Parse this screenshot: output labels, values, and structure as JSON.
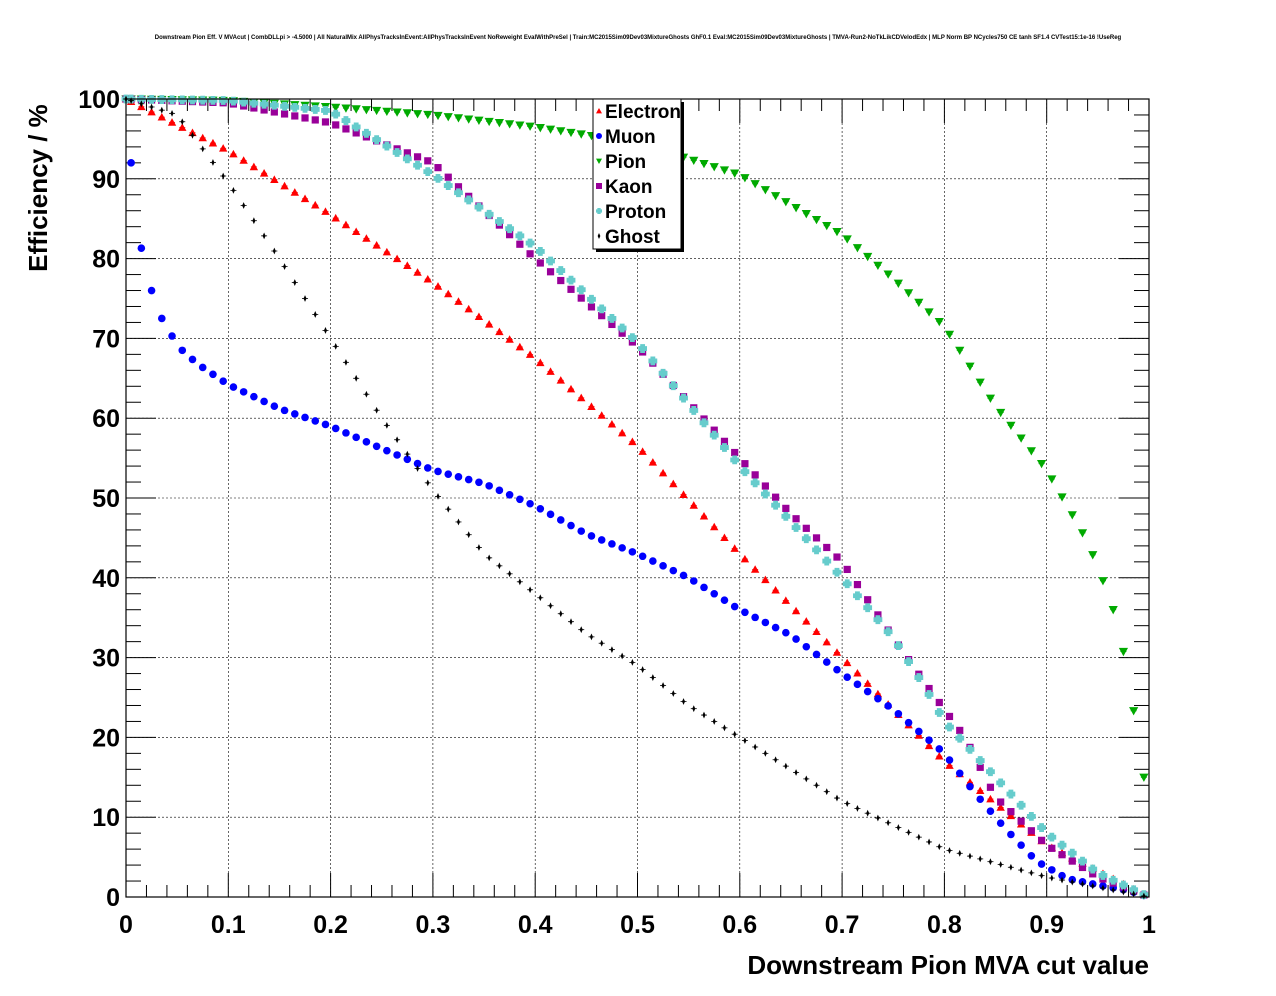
{
  "chart_data": {
    "type": "scatter",
    "title": "Downstream Pion Eff. V MVAcut | CombDLLpi > -4.5000 | All NaturalMix AllPhysTracksInEvent:AllPhysTracksInEvent NoReweight EvalWithPreSel | Train:MC2015Sim09Dev03MixtureGhosts GhF0.1 Eval:MC2015Sim09Dev03MixtureGhosts | TMVA-Run2-NoTkLikCDVelodEdx | MLP Norm BP NCycles750 CE tanh SF1.4 CVTest15:1e-16 !UseReg",
    "xlabel": "Downstream Pion MVA cut value",
    "ylabel": "Efficiency / %",
    "xlim": [
      0,
      1
    ],
    "ylim": [
      0,
      100
    ],
    "x_ticks": [
      "0",
      "0.1",
      "0.2",
      "0.3",
      "0.4",
      "0.5",
      "0.6",
      "0.7",
      "0.8",
      "0.9",
      "1"
    ],
    "y_ticks": [
      "0",
      "10",
      "20",
      "30",
      "40",
      "50",
      "60",
      "70",
      "80",
      "90",
      "100"
    ],
    "grid": true,
    "legend_position": "top-center",
    "series": [
      {
        "name": "Electron",
        "color": "#ff0000",
        "marker": "triangle-up",
        "x": [
          0,
          0.1,
          0.2,
          0.3,
          0.4,
          0.5,
          0.6,
          0.7,
          0.8,
          0.9,
          1.0
        ],
        "y": [
          100,
          93.5,
          85.5,
          77,
          67.5,
          56.5,
          43,
          30,
          17,
          6.5,
          0
        ]
      },
      {
        "name": "Muon",
        "color": "#0000ff",
        "marker": "circle",
        "x": [
          0.005,
          0.015,
          0.025,
          0.035,
          0.045,
          0.055,
          0.07,
          0.1,
          0.15,
          0.2,
          0.25,
          0.3,
          0.35,
          0.4,
          0.45,
          0.5,
          0.55,
          0.6,
          0.65,
          0.7,
          0.75,
          0.8,
          0.83,
          0.86,
          0.89,
          0.92,
          0.95,
          0.98,
          1.0
        ],
        "y": [
          92,
          81.3,
          76,
          72.5,
          70.3,
          68.5,
          66.8,
          64.2,
          61.2,
          59,
          56.2,
          53.5,
          51.8,
          49,
          45.5,
          43,
          40,
          36,
          32.8,
          28,
          23.5,
          18,
          13,
          8.5,
          4.5,
          2.3,
          1.5,
          0.8,
          0
        ]
      },
      {
        "name": "Pion",
        "color": "#00aa00",
        "marker": "triangle-down",
        "x": [
          0,
          0.1,
          0.2,
          0.3,
          0.4,
          0.5,
          0.6,
          0.7,
          0.75,
          0.8,
          0.85,
          0.9,
          0.92,
          0.94,
          0.96,
          0.97,
          0.98,
          0.995
        ],
        "y": [
          100,
          99.8,
          99,
          98,
          96.5,
          94.5,
          90.5,
          83,
          77.5,
          71.5,
          61.5,
          53.5,
          49,
          44.5,
          38,
          34,
          27.5,
          15
        ]
      },
      {
        "name": "Kaon",
        "color": "#990099",
        "marker": "square",
        "x": [
          0,
          0.1,
          0.2,
          0.3,
          0.4,
          0.5,
          0.6,
          0.65,
          0.7,
          0.75,
          0.78,
          0.8,
          0.82,
          0.85,
          0.9,
          0.95,
          1.0
        ],
        "y": [
          100,
          99.5,
          97,
          92,
          80,
          69,
          55,
          48,
          42,
          32.5,
          27,
          23.5,
          20,
          12.5,
          6.5,
          2.5,
          0
        ]
      },
      {
        "name": "Proton",
        "color": "#66cccc",
        "marker": "cross",
        "x": [
          0,
          0.1,
          0.2,
          0.3,
          0.4,
          0.5,
          0.6,
          0.65,
          0.7,
          0.75,
          0.78,
          0.8,
          0.85,
          0.9,
          0.95,
          1.0
        ],
        "y": [
          100,
          99.8,
          98.5,
          90.5,
          81.5,
          69.5,
          54,
          47,
          40,
          32.5,
          26.5,
          22,
          15,
          8,
          3,
          0
        ]
      },
      {
        "name": "Ghost",
        "color": "#000000",
        "marker": "star",
        "x": [
          0,
          0.05,
          0.1,
          0.15,
          0.2,
          0.25,
          0.3,
          0.35,
          0.4,
          0.45,
          0.5,
          0.55,
          0.6,
          0.7,
          0.8,
          0.9,
          1.0
        ],
        "y": [
          100,
          98,
          89.5,
          80,
          70,
          60,
          51,
          43,
          38,
          33,
          29,
          24,
          20,
          12,
          6,
          2.5,
          0
        ]
      }
    ]
  }
}
